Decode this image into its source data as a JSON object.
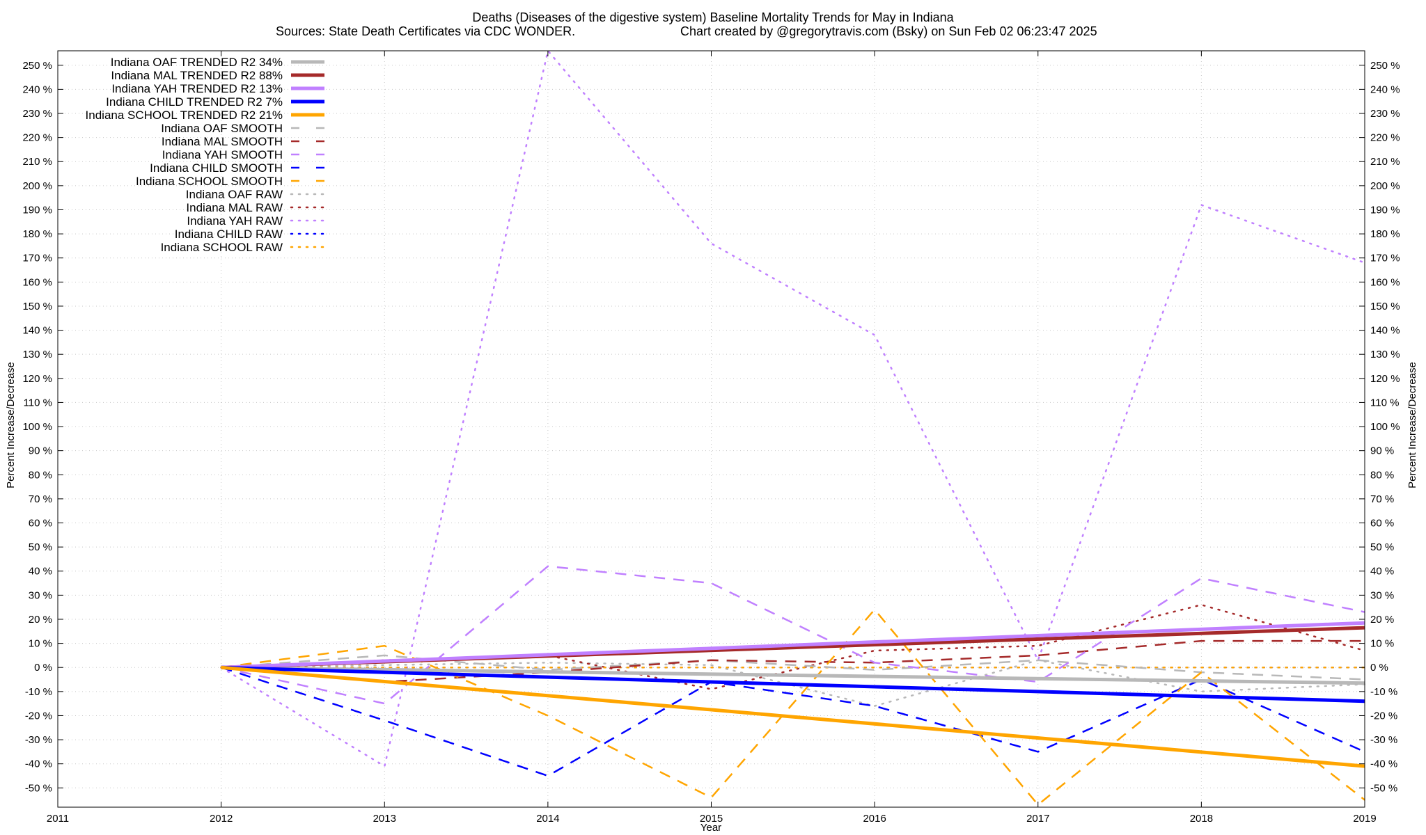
{
  "chart_data": {
    "type": "line",
    "title": "Deaths (Diseases of the digestive system)  Baseline Mortality Trends for May in Indiana",
    "subtitle_left": "Sources: State Death Certificates via CDC WONDER.",
    "subtitle_right": "Chart created by @gregorytravis.com (Bsky) on Sun Feb 02 06:23:47 2025",
    "xlabel": "Year",
    "ylabel_left": "Percent Increase/Decrease",
    "ylabel_right": "Percent Increase/Decrease",
    "xlim": [
      2011,
      2019
    ],
    "ylim": [
      -58,
      256
    ],
    "x_ticks": [
      "2011",
      "2012",
      "2013",
      "2014",
      "2015",
      "2016",
      "2017",
      "2018",
      "2019"
    ],
    "y_ticks": [
      "250 %",
      "240 %",
      "230 %",
      "220 %",
      "210 %",
      "200 %",
      "190 %",
      "180 %",
      "170 %",
      "160 %",
      "150 %",
      "140 %",
      "130 %",
      "120 %",
      "110 %",
      "100 %",
      "90 %",
      "80 %",
      "70 %",
      "60 %",
      "50 %",
      "40 %",
      "30 %",
      "20 %",
      "10 %",
      "0 %",
      "-10 %",
      "-20 %",
      "-30 %",
      "-40 %",
      "-50 %"
    ],
    "grid": true,
    "legend_position": "top-left",
    "x": [
      2012,
      2013,
      2014,
      2015,
      2016,
      2017,
      2018,
      2019
    ],
    "series": [
      {
        "name": "Indiana OAF TRENDED R2  34%",
        "style": "solid",
        "color": "#b8b8b8",
        "x": [
          2012,
          2019
        ],
        "values": [
          0,
          -6.5
        ]
      },
      {
        "name": "Indiana MAL TRENDED R2  88%",
        "style": "solid",
        "color": "#a52a2a",
        "x": [
          2012,
          2019
        ],
        "values": [
          0,
          16.5
        ]
      },
      {
        "name": "Indiana YAH TRENDED R2  13%",
        "style": "solid",
        "color": "#c080ff",
        "x": [
          2012,
          2019
        ],
        "values": [
          0,
          18.5
        ]
      },
      {
        "name": "Indiana CHILD TRENDED R2  7%",
        "style": "solid",
        "color": "#0000ff",
        "x": [
          2012,
          2019
        ],
        "values": [
          0,
          -14
        ]
      },
      {
        "name": "Indiana SCHOOL TRENDED R2  21%",
        "style": "solid",
        "color": "#ffa500",
        "x": [
          2012,
          2019
        ],
        "values": [
          0,
          -41
        ]
      },
      {
        "name": "Indiana OAF SMOOTH",
        "style": "dashed",
        "color": "#b8b8b8",
        "values": [
          0,
          5,
          -1,
          3,
          -1,
          3,
          -2,
          -5
        ]
      },
      {
        "name": "Indiana MAL SMOOTH",
        "style": "dashed",
        "color": "#a52a2a",
        "values": [
          0,
          -6,
          -2,
          3,
          2,
          5,
          11,
          11
        ]
      },
      {
        "name": "Indiana YAH SMOOTH",
        "style": "dashed",
        "color": "#c080ff",
        "values": [
          0,
          -15,
          42,
          35,
          2,
          -6,
          37,
          23
        ]
      },
      {
        "name": "Indiana CHILD SMOOTH",
        "style": "dashed",
        "color": "#0000ff",
        "values": [
          0,
          -22,
          -45,
          -6,
          -16,
          -35,
          -5,
          -35
        ]
      },
      {
        "name": "Indiana SCHOOL SMOOTH",
        "style": "dashed",
        "color": "#ffa500",
        "values": [
          0,
          9,
          -20,
          -54,
          24,
          -57,
          -2,
          -55
        ]
      },
      {
        "name": "Indiana OAF RAW",
        "style": "dotted",
        "color": "#b8b8b8",
        "values": [
          0,
          1,
          2,
          1,
          -16,
          3,
          -10,
          -7
        ]
      },
      {
        "name": "Indiana MAL RAW",
        "style": "dotted",
        "color": "#a52a2a",
        "values": [
          0,
          3,
          5,
          -9,
          7,
          9,
          26,
          7
        ]
      },
      {
        "name": "Indiana YAH RAW",
        "style": "dotted",
        "color": "#c080ff",
        "values": [
          0,
          -41,
          256,
          176,
          138,
          3,
          192,
          168
        ]
      },
      {
        "name": "Indiana CHILD RAW",
        "style": "dotted",
        "color": "#0000ff",
        "values": [
          0,
          0,
          0,
          0,
          0,
          0,
          0,
          0
        ]
      },
      {
        "name": "Indiana SCHOOL RAW",
        "style": "dotted",
        "color": "#ffa500",
        "values": [
          0,
          0,
          0,
          0,
          0,
          0,
          0,
          0
        ]
      }
    ]
  }
}
